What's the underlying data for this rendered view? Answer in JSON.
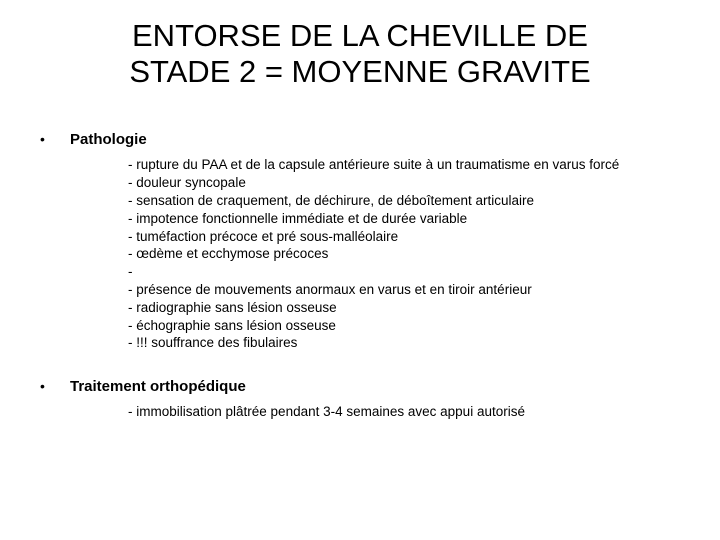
{
  "title_line1": "ENTORSE DE LA CHEVILLE DE",
  "title_line2": "STADE 2 = MOYENNE GRAVITE",
  "sections": [
    {
      "heading": "Pathologie",
      "items": [
        "- rupture du PAA et de la capsule antérieure suite à un traumatisme en varus forcé",
        "- douleur syncopale",
        "- sensation de craquement, de déchirure, de déboîtement articulaire",
        "- impotence fonctionnelle immédiate et de durée variable",
        "- tuméfaction précoce et pré sous-malléolaire",
        "- œdème et ecchymose précoces",
        "-",
        "- présence de mouvements anormaux en varus et en tiroir antérieur",
        "- radiographie sans lésion osseuse",
        "- échographie sans lésion osseuse",
        "- !!! souffrance des fibulaires"
      ]
    },
    {
      "heading": "Traitement orthopédique",
      "items": [
        "- immobilisation plâtrée pendant 3-4 semaines avec appui autorisé"
      ]
    }
  ]
}
